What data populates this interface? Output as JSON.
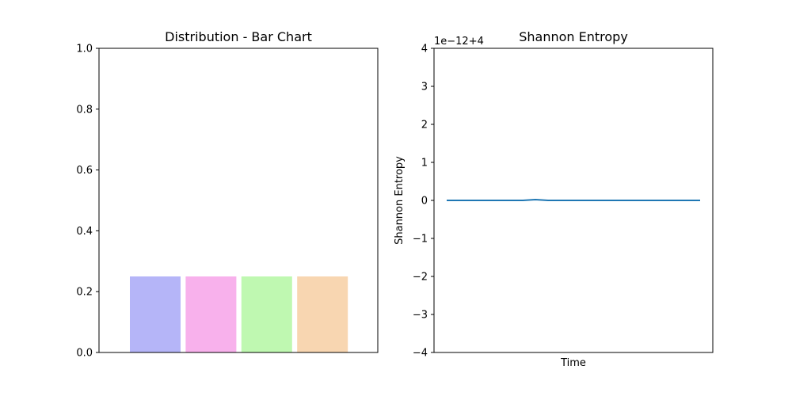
{
  "colors": {
    "bar_colors": [
      "#b5b5f8",
      "#f8b1ec",
      "#bff8b1",
      "#f8d6b1"
    ],
    "line_color": "#1f77b4",
    "axis_color": "#000000",
    "background": "#ffffff"
  },
  "chart_data": [
    {
      "type": "bar",
      "title": "Distribution - Bar Chart",
      "xlabel": "",
      "ylabel": "",
      "categories": [
        "",
        "",
        "",
        ""
      ],
      "values": [
        0.25,
        0.25,
        0.25,
        0.25
      ],
      "ylim": [
        0.0,
        1.0
      ],
      "yticks": [
        0.0,
        0.2,
        0.4,
        0.6,
        0.8,
        1.0
      ],
      "ytick_labels": [
        "0.0",
        "0.2",
        "0.4",
        "0.6",
        "0.8",
        "1.0"
      ],
      "xticks_visible": false,
      "grid": false,
      "legend": false
    },
    {
      "type": "line",
      "title": "Shannon Entropy",
      "xlabel": "Time",
      "ylabel": "Shannon Entropy",
      "offset_text": "1e−12+4",
      "y_scale_note": "values = 4 + y × 1e-12",
      "ylim": [
        -4,
        4
      ],
      "yticks": [
        -4,
        -3,
        -2,
        -1,
        0,
        1,
        2,
        3,
        4
      ],
      "ytick_labels": [
        "−4",
        "−3",
        "−2",
        "−1",
        "0",
        "1",
        "2",
        "3",
        "4"
      ],
      "xticks_visible": false,
      "grid": false,
      "legend": false,
      "series": [
        {
          "x": [
            0,
            1,
            2,
            3,
            4,
            5,
            6,
            7,
            8,
            9,
            10,
            11,
            12,
            13,
            14,
            15,
            16,
            17,
            18,
            19,
            20
          ],
          "values": [
            0,
            0,
            0,
            0,
            0,
            0,
            0,
            0.02,
            0,
            0,
            0,
            0,
            0,
            0,
            0,
            0,
            0,
            0,
            0,
            0,
            0
          ]
        }
      ]
    }
  ]
}
